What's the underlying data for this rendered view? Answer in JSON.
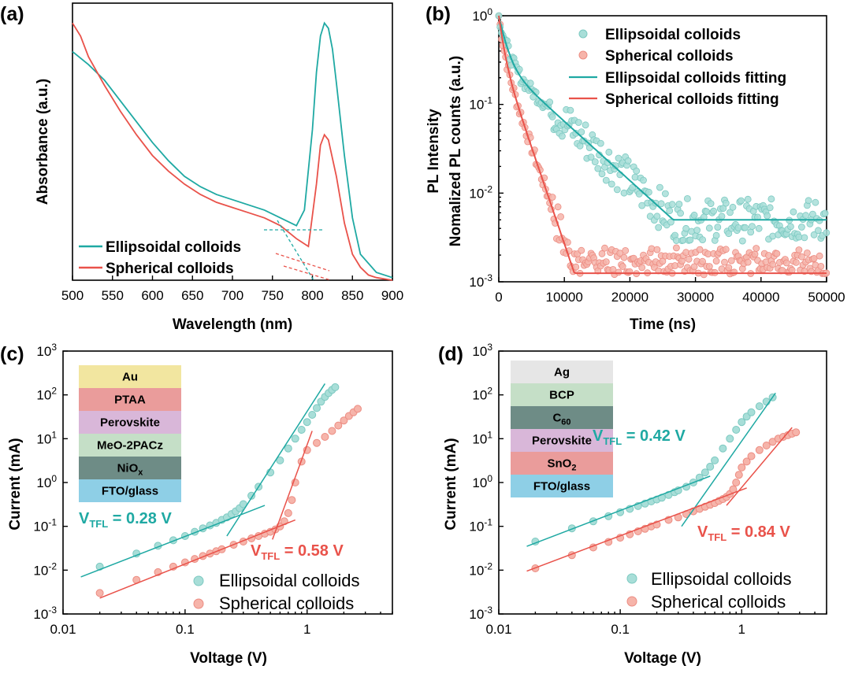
{
  "colors": {
    "teal": "#1fa9a3",
    "red": "#e9524a",
    "teal_marker": "#a8ded8",
    "red_marker": "#f6b4aa"
  },
  "chart_data": [
    {
      "panel": "(a)",
      "type": "line",
      "xlabel": "Wavelength (nm)",
      "ylabel": "Absorbance (a.u.)",
      "xlim": [
        500,
        900
      ],
      "xticks": [
        500,
        550,
        600,
        650,
        700,
        750,
        800,
        850,
        900
      ],
      "legend": {
        "position": "bottom-left"
      },
      "series": [
        {
          "name": "Ellipsoidal colloids",
          "color": "#1fa9a3",
          "x": [
            500,
            520,
            540,
            560,
            580,
            600,
            620,
            640,
            660,
            680,
            700,
            720,
            740,
            760,
            780,
            790,
            800,
            805,
            810,
            815,
            820,
            825,
            830,
            840,
            850,
            860,
            880,
            900
          ],
          "y": [
            0.88,
            0.83,
            0.77,
            0.69,
            0.61,
            0.53,
            0.46,
            0.4,
            0.36,
            0.33,
            0.31,
            0.29,
            0.27,
            0.24,
            0.21,
            0.27,
            0.58,
            0.8,
            0.94,
            0.99,
            0.97,
            0.89,
            0.76,
            0.48,
            0.24,
            0.1,
            0.03,
            0.01
          ]
        },
        {
          "name": "Spherical colloids",
          "color": "#e9524a",
          "x": [
            500,
            510,
            520,
            540,
            560,
            580,
            600,
            620,
            640,
            660,
            680,
            700,
            720,
            740,
            760,
            780,
            795,
            805,
            810,
            815,
            820,
            830,
            840,
            850,
            860,
            870,
            880,
            900
          ],
          "y": [
            0.99,
            0.94,
            0.86,
            0.75,
            0.65,
            0.56,
            0.48,
            0.42,
            0.37,
            0.33,
            0.3,
            0.28,
            0.26,
            0.24,
            0.21,
            0.16,
            0.13,
            0.37,
            0.52,
            0.56,
            0.54,
            0.4,
            0.22,
            0.1,
            0.05,
            0.02,
            0.01,
            0.0
          ]
        }
      ]
    },
    {
      "panel": "(b)",
      "type": "scatter",
      "xlabel": "Time (ns)",
      "ylabel": "Nomalized PL counts (a.u.)",
      "ylabel_outer": "PL Intensity",
      "xlim": [
        0,
        50000
      ],
      "ylim": [
        0.001,
        1
      ],
      "yscale": "log",
      "xticks": [
        0,
        10000,
        20000,
        30000,
        40000,
        50000
      ],
      "yticks": [
        {
          "base": "10",
          "exp": "-3"
        },
        {
          "base": "10",
          "exp": "-2"
        },
        {
          "base": "10",
          "exp": "-1"
        },
        {
          "base": "10",
          "exp": "0"
        }
      ],
      "legend": {
        "position": "top-right"
      },
      "series": [
        {
          "name": "Ellipsoidal colloids",
          "kind": "scatter",
          "color": "#a8ded8",
          "tau1": 1000,
          "a1": 0.7,
          "tau2": 6500,
          "a2": 0.3,
          "floor": 0.005
        },
        {
          "name": "Spherical colloids",
          "kind": "scatter",
          "color": "#f6b4aa",
          "tau1": 600,
          "a1": 0.6,
          "tau2": 2000,
          "a2": 0.4,
          "floor": 0.00125
        },
        {
          "name": "Ellipsoidal colloids fitting",
          "kind": "line",
          "color": "#1fa9a3"
        },
        {
          "name": "Spherical colloids fitting",
          "kind": "line",
          "color": "#e9524a"
        }
      ]
    },
    {
      "panel": "(c)",
      "type": "scatter",
      "xlabel": "Voltage (V)",
      "ylabel": "Current (mA)",
      "xscale": "log",
      "yscale": "log",
      "xlim": [
        0.01,
        5
      ],
      "ylim": [
        0.001,
        1000
      ],
      "xticks": [
        "0.01",
        "0.1",
        "1"
      ],
      "yticks": [
        {
          "base": "10",
          "exp": "-3"
        },
        {
          "base": "10",
          "exp": "-2"
        },
        {
          "base": "10",
          "exp": "-1"
        },
        {
          "base": "10",
          "exp": "0"
        },
        {
          "base": "10",
          "exp": "1"
        },
        {
          "base": "10",
          "exp": "2"
        },
        {
          "base": "10",
          "exp": "3"
        }
      ],
      "legend": {
        "position": "bottom-right"
      },
      "layers": [
        "Au",
        "PTAA",
        "Perovskite",
        "MeO-2PACz",
        "NiO",
        "FTO/glass"
      ],
      "layer_subscripts": [
        "",
        "",
        "",
        "",
        "x",
        ""
      ],
      "layer_colors": [
        "#f2e6a0",
        "#ea9c9b",
        "#d9b7d9",
        "#c5dfc7",
        "#6e8c86",
        "#8ecfe6"
      ],
      "annotations": [
        {
          "text": "V",
          "sub": "TFL",
          "value": " = 0.28 V",
          "color": "#1fa9a3"
        },
        {
          "text": "V",
          "sub": "TFL",
          "value": " = 0.58 V",
          "color": "#e9524a"
        }
      ],
      "series": [
        {
          "name": "Ellipsoidal colloids",
          "x": [
            0.02,
            0.04,
            0.06,
            0.08,
            0.1,
            0.12,
            0.14,
            0.16,
            0.18,
            0.2,
            0.22,
            0.24,
            0.26,
            0.28,
            0.3,
            0.35,
            0.4,
            0.5,
            0.6,
            0.7,
            0.8,
            0.9,
            1.0,
            1.1,
            1.2,
            1.3,
            1.4,
            1.5,
            1.6,
            1.7
          ],
          "y": [
            0.012,
            0.024,
            0.036,
            0.048,
            0.06,
            0.075,
            0.09,
            0.105,
            0.12,
            0.14,
            0.16,
            0.19,
            0.22,
            0.26,
            0.32,
            0.5,
            0.8,
            1.7,
            3.2,
            6,
            10,
            16,
            24,
            35,
            50,
            70,
            90,
            110,
            130,
            150
          ]
        },
        {
          "name": "Spherical colloids",
          "x": [
            0.02,
            0.04,
            0.06,
            0.08,
            0.1,
            0.12,
            0.14,
            0.16,
            0.18,
            0.2,
            0.25,
            0.3,
            0.35,
            0.4,
            0.45,
            0.5,
            0.55,
            0.6,
            0.65,
            0.7,
            0.75,
            0.8,
            0.9,
            1.0,
            1.2,
            1.4,
            1.6,
            1.8,
            2.0,
            2.2,
            2.4,
            2.6
          ],
          "y": [
            0.003,
            0.006,
            0.009,
            0.012,
            0.015,
            0.018,
            0.021,
            0.024,
            0.027,
            0.03,
            0.038,
            0.045,
            0.053,
            0.06,
            0.068,
            0.075,
            0.085,
            0.1,
            0.13,
            0.2,
            0.4,
            1.0,
            3.0,
            5.5,
            8,
            11,
            15,
            20,
            26,
            33,
            40,
            48
          ]
        }
      ]
    },
    {
      "panel": "(d)",
      "type": "scatter",
      "xlabel": "Voltage (V)",
      "ylabel": "Current (mA)",
      "xscale": "log",
      "yscale": "log",
      "xlim": [
        0.01,
        5
      ],
      "ylim": [
        0.001,
        1000
      ],
      "xticks": [
        "0.01",
        "0.1",
        "1"
      ],
      "yticks": [
        {
          "base": "10",
          "exp": "-3"
        },
        {
          "base": "10",
          "exp": "-2"
        },
        {
          "base": "10",
          "exp": "-1"
        },
        {
          "base": "10",
          "exp": "0"
        },
        {
          "base": "10",
          "exp": "1"
        },
        {
          "base": "10",
          "exp": "2"
        },
        {
          "base": "10",
          "exp": "3"
        }
      ],
      "legend": {
        "position": "bottom-right"
      },
      "layers": [
        "Ag",
        "BCP",
        "C",
        "Perovskite",
        "SnO",
        "FTO/glass"
      ],
      "layer_subscripts": [
        "",
        "",
        "60",
        "",
        "2",
        ""
      ],
      "layer_colors": [
        "#e6e6e6",
        "#c5dfc7",
        "#6e8c86",
        "#d9b7d9",
        "#ea9c9b",
        "#8ecfe6"
      ],
      "annotations": [
        {
          "text": "V",
          "sub": "TFL",
          "value": " = 0.42 V",
          "color": "#1fa9a3"
        },
        {
          "text": "V",
          "sub": "TFL",
          "value": " = 0.84 V",
          "color": "#e9524a"
        }
      ],
      "series": [
        {
          "name": "Ellipsoidal colloids",
          "x": [
            0.02,
            0.04,
            0.06,
            0.08,
            0.1,
            0.12,
            0.14,
            0.16,
            0.18,
            0.2,
            0.22,
            0.25,
            0.28,
            0.3,
            0.35,
            0.4,
            0.45,
            0.5,
            0.55,
            0.6,
            0.7,
            0.8,
            0.9,
            1.0,
            1.1,
            1.2,
            1.4,
            1.6,
            1.8
          ],
          "y": [
            0.045,
            0.09,
            0.13,
            0.17,
            0.21,
            0.25,
            0.29,
            0.33,
            0.37,
            0.41,
            0.45,
            0.52,
            0.6,
            0.66,
            0.8,
            1.0,
            1.3,
            1.7,
            2.3,
            3.2,
            6,
            10,
            16,
            24,
            32,
            40,
            55,
            70,
            88
          ]
        },
        {
          "name": "Spherical colloids",
          "x": [
            0.02,
            0.04,
            0.06,
            0.08,
            0.1,
            0.12,
            0.14,
            0.16,
            0.18,
            0.2,
            0.25,
            0.3,
            0.35,
            0.4,
            0.45,
            0.5,
            0.55,
            0.6,
            0.65,
            0.7,
            0.75,
            0.8,
            0.85,
            0.9,
            0.95,
            1.0,
            1.1,
            1.2,
            1.4,
            1.6,
            1.8,
            2.0,
            2.2,
            2.4,
            2.6,
            2.8
          ],
          "y": [
            0.011,
            0.022,
            0.033,
            0.044,
            0.055,
            0.066,
            0.077,
            0.088,
            0.1,
            0.11,
            0.14,
            0.16,
            0.19,
            0.22,
            0.25,
            0.28,
            0.31,
            0.34,
            0.38,
            0.42,
            0.47,
            0.55,
            0.7,
            1.0,
            1.5,
            2.2,
            3,
            4,
            5.5,
            7,
            8.5,
            10,
            11,
            12,
            13,
            14
          ]
        }
      ]
    }
  ]
}
